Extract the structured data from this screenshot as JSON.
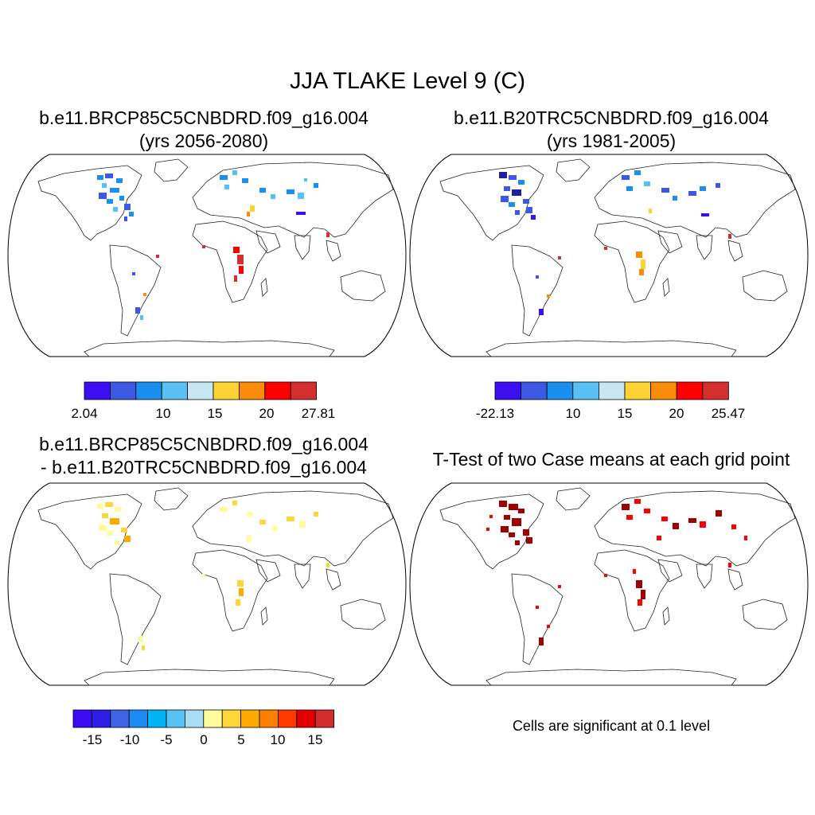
{
  "title": "JJA TLAKE Level 9 (C)",
  "panels": [
    {
      "line1": "b.e11.BRCP85C5CNBDRD.f09_g16.004",
      "line2": "(yrs 2056-2080)",
      "scale": {
        "colors": [
          "#3b0ff2",
          "#3d59e3",
          "#1b8ff0",
          "#58c0f2",
          "#c7e6f4",
          "#fdd233",
          "#fb8c09",
          "#fe0000",
          "#d42e2e"
        ],
        "labels": [
          "2.04",
          "10",
          "15",
          "20",
          "27.81"
        ]
      }
    },
    {
      "line1": "b.e11.B20TRC5CNBDRD.f09_g16.004",
      "line2": "(yrs 1981-2005)",
      "scale": {
        "colors": [
          "#3b0ff2",
          "#3d59e3",
          "#1b8ff0",
          "#58c0f2",
          "#c7e6f4",
          "#fdd233",
          "#fb8c09",
          "#fe0000",
          "#d42e2e"
        ],
        "labels": [
          "-22.13",
          "10",
          "15",
          "20",
          "25.47"
        ]
      }
    },
    {
      "line1": "b.e11.BRCP85C5CNBDRD.f09_g16.004",
      "line2": "- b.e11.B20TRC5CNBDRD.f09_g16.004",
      "scale": {
        "colors": [
          "#3a0cf2",
          "#2e1fe6",
          "#3e63e3",
          "#1a8bf5",
          "#00b3f4",
          "#56c3f3",
          "#a9dcf5",
          "#fdfb9c",
          "#fdd63a",
          "#fdab00",
          "#fe7f00",
          "#fe3a00",
          "#e40000",
          "#d12d2d"
        ],
        "labels": [
          "-15",
          "-10",
          "-5",
          "0",
          "5",
          "10",
          "15"
        ]
      }
    },
    {
      "line1": "T-Test of two Case means at each grid point",
      "note": "Cells are significant at 0.1 level"
    }
  ]
}
